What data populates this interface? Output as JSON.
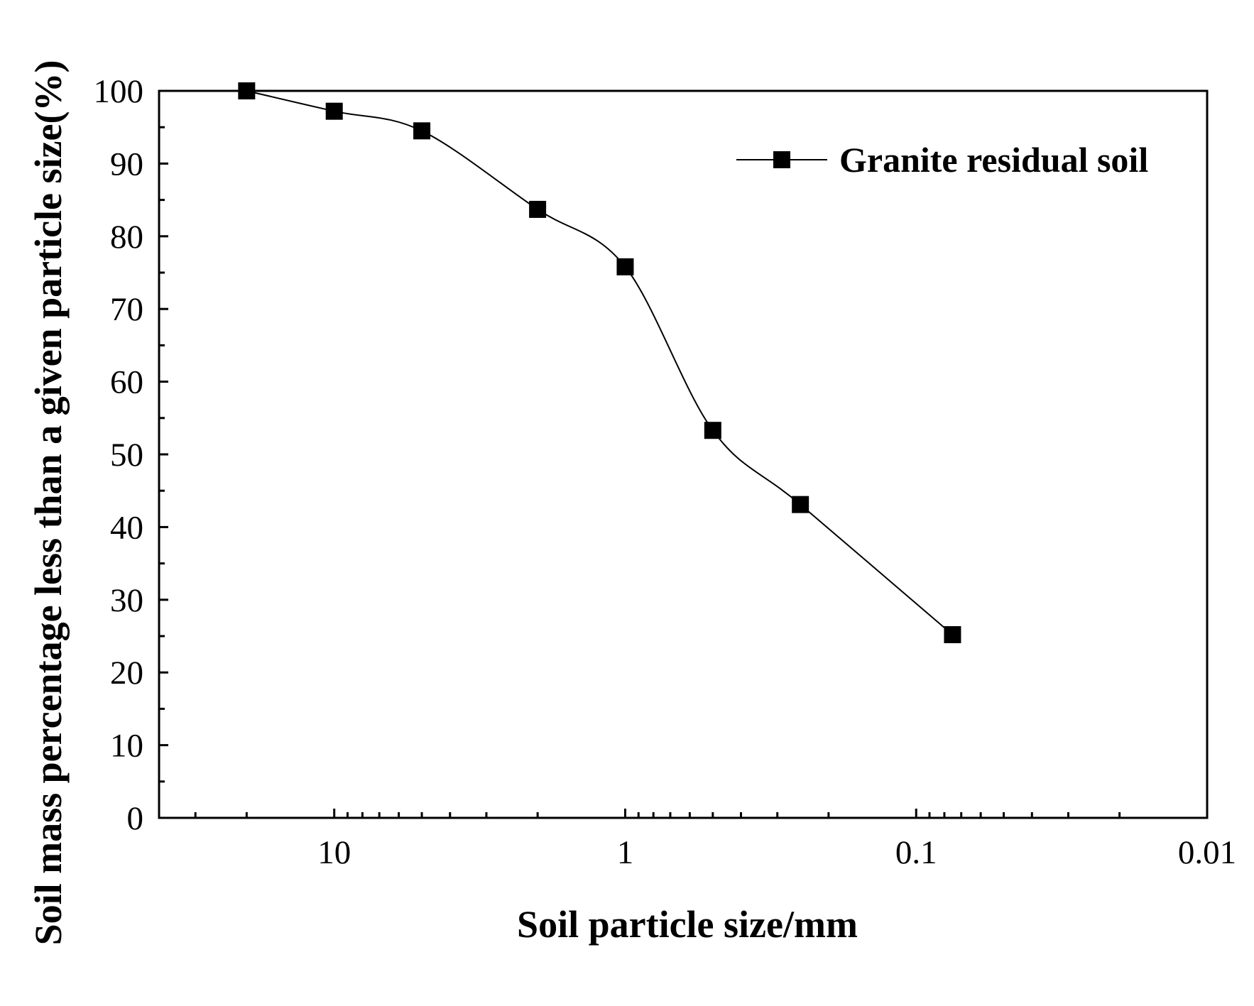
{
  "chart_data": {
    "type": "line",
    "xlabel": "Soil particle size/mm",
    "ylabel": "Soil mass percentage less than a given particle size(%)",
    "x_scale": "log",
    "x_reversed": true,
    "xlim": [
      40,
      0.01
    ],
    "ylim": [
      0,
      100
    ],
    "x_ticks": [
      10,
      1,
      0.1,
      0.01
    ],
    "x_tick_labels": [
      "10",
      "1",
      "0.1",
      "0.01"
    ],
    "y_ticks": [
      0,
      10,
      20,
      30,
      40,
      50,
      60,
      70,
      80,
      90,
      100
    ],
    "y_tick_labels": [
      "0",
      "10",
      "20",
      "30",
      "40",
      "50",
      "60",
      "70",
      "80",
      "90",
      "100"
    ],
    "grid": false,
    "legend_position": "top-right",
    "marker": "square",
    "color": "#000000",
    "series": [
      {
        "name": "Granite residual soil",
        "x": [
          20,
          10,
          5,
          2,
          1,
          0.5,
          0.25,
          0.075
        ],
        "y": [
          100,
          97.2,
          94.5,
          83.7,
          75.8,
          53.3,
          43.1,
          25.2
        ]
      }
    ]
  }
}
